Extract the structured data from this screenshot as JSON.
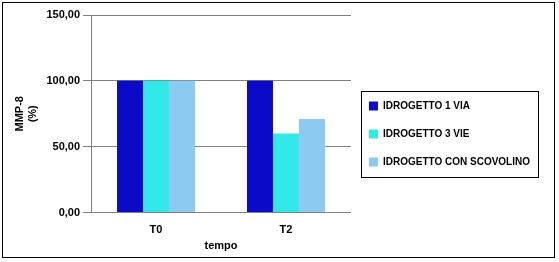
{
  "chart_data": {
    "type": "bar",
    "x_label": "tempo",
    "y_label": [
      "MMP-8",
      "(%)"
    ],
    "categories": [
      "T0",
      "T2"
    ],
    "series": [
      {
        "name": "IDROGETTO 1 VIA",
        "color": "#0a0ac8",
        "values": [
          100,
          100
        ]
      },
      {
        "name": "IDROGETTO 3 VIE",
        "color": "#33e8e8",
        "values": [
          100,
          60
        ]
      },
      {
        "name": "IDROGETTO CON SCOVOLINO",
        "color": "#8ccaf2",
        "values": [
          100,
          71
        ]
      }
    ],
    "ylim": [
      0,
      150
    ],
    "yticks": [
      {
        "value": 0,
        "label": "0,00"
      },
      {
        "value": 50,
        "label": "50,00"
      },
      {
        "value": 100,
        "label": "100,00"
      },
      {
        "value": 150,
        "label": "150,00"
      }
    ],
    "grid": true,
    "legend": "right"
  }
}
